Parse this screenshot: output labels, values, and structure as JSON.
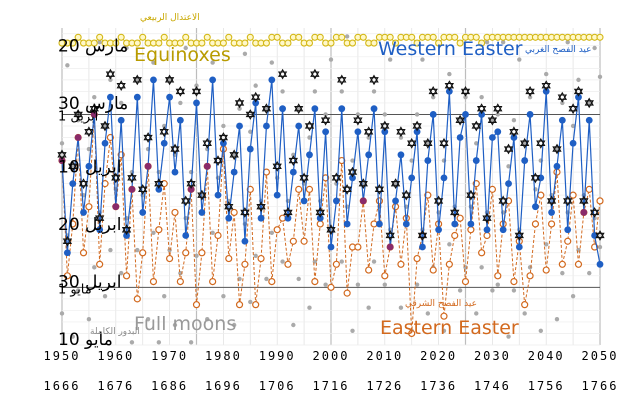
{
  "chart_data": {
    "type": "scatter",
    "title": "",
    "x_range": [
      1950,
      2050
    ],
    "x_ticks_gregorian": [
      "1950",
      "1960",
      "1970",
      "1980",
      "1990",
      "2000",
      "2010",
      "2020",
      "2030",
      "2040",
      "2050"
    ],
    "x_ticks_hijri": [
      "1666",
      "1676",
      "1686",
      "1696",
      "1706",
      "1716",
      "1726",
      "1736",
      "1746",
      "1756",
      "1766"
    ],
    "y_axis_note": "day number counted from March 1",
    "y_range": [
      17,
      72
    ],
    "y_ticks": [
      {
        "day": 20,
        "label": "مارس 20"
      },
      {
        "day": 30,
        "label": "مارس 30"
      },
      {
        "day": 32,
        "label": "ابريل 1"
      },
      {
        "day": 41,
        "label": "ابريل 10"
      },
      {
        "day": 51,
        "label": "ابريل 20"
      },
      {
        "day": 61,
        "label": "ابريل 30"
      },
      {
        "day": 62,
        "label": "مايو 1"
      },
      {
        "day": 71,
        "label": "مايو 10"
      }
    ],
    "grid": true,
    "series": [
      {
        "name": "Equinoxes",
        "name_ar": "الاعتدال الربيعي",
        "color": "#d4b817",
        "marker": "open-circle",
        "values": [
          21,
          21,
          21,
          20,
          21,
          21,
          21,
          20,
          21,
          21,
          21,
          20,
          21,
          21,
          21,
          20,
          21,
          21,
          21,
          20,
          21,
          21,
          21,
          20,
          21,
          21,
          21,
          20,
          21,
          21,
          21,
          20,
          21,
          21,
          21,
          20,
          21,
          21,
          21,
          20,
          20,
          21,
          21,
          20,
          20,
          21,
          21,
          20,
          20,
          21,
          21,
          20,
          20,
          21,
          21,
          20,
          20,
          21,
          21,
          20,
          20,
          20,
          21,
          20,
          20,
          20,
          21,
          20,
          20,
          20,
          21,
          20,
          20,
          20,
          21,
          20,
          20,
          20,
          21,
          20,
          20,
          20,
          20,
          20,
          20,
          20,
          20,
          20,
          20,
          20,
          20,
          20,
          20,
          20,
          20,
          20,
          20,
          20,
          20,
          20,
          20
        ]
      },
      {
        "name": "Full moons",
        "name_ar": "البدور الكاملة",
        "color": "#aaaaaa",
        "marker": "dot",
        "values": []
      },
      {
        "name": "Western Easter",
        "name_ar": "عيد الفصح الغربي",
        "color": "#1f5fc4",
        "marker": "filled-circle",
        "values": [
          40,
          56,
          44,
          36,
          49,
          41,
          32,
          52,
          37,
          29,
          48,
          33,
          53,
          45,
          29,
          49,
          41,
          26,
          45,
          37,
          29,
          42,
          33,
          53,
          45,
          30,
          49,
          41,
          26,
          46,
          37,
          50,
          42,
          34,
          54,
          38,
          30,
          50,
          34,
          26,
          46,
          31,
          50,
          42,
          34,
          47,
          39,
          31,
          50,
          35,
          55,
          47,
          31,
          51,
          43,
          35,
          47,
          39,
          31,
          51,
          35,
          55,
          47,
          39,
          51,
          43,
          35,
          55,
          40,
          32,
          52,
          43,
          28,
          51,
          36,
          32,
          51,
          40,
          32,
          52,
          36,
          35,
          52,
          44,
          36,
          55,
          40,
          32,
          48,
          43,
          28,
          49,
          41,
          33,
          52,
          37,
          29,
          49,
          33,
          53,
          58
        ]
      },
      {
        "name": "Eastern Easter",
        "name_ar": "عيد الفصح الشرقي",
        "color": "#d2691e",
        "marker": "open-circle",
        "values": [
          40,
          60,
          51,
          36,
          56,
          48,
          32,
          58,
          44,
          36,
          48,
          39,
          60,
          45,
          64,
          56,
          41,
          61,
          52,
          44,
          57,
          49,
          61,
          56,
          45,
          65,
          56,
          41,
          61,
          53,
          38,
          57,
          49,
          65,
          58,
          45,
          65,
          57,
          42,
          61,
          52,
          50,
          58,
          54,
          45,
          54,
          45,
          61,
          51,
          43,
          62,
          58,
          40,
          63,
          55,
          55,
          47,
          59,
          51,
          47,
          60,
          55,
          48,
          58,
          50,
          70,
          57,
          53,
          46,
          59,
          51,
          67,
          58,
          53,
          50,
          61,
          52,
          44,
          56,
          53,
          45,
          60,
          51,
          47,
          61,
          54,
          65,
          60,
          51,
          46,
          59,
          51,
          42,
          58,
          54,
          46,
          58,
          49,
          45,
          55,
          47
        ]
      },
      {
        "name": "",
        "color": "#111111",
        "marker": "star-of-david",
        "values": []
      }
    ],
    "annotations": [
      {
        "text": "Equinoxes",
        "color": "#b89b00",
        "ar": "الاعتدال الربيعي"
      },
      {
        "text": "Western Easter",
        "color": "#1f5fc4",
        "ar": "عيد الفصح الغربي"
      },
      {
        "text": "Full moons",
        "color": "#999999",
        "ar": "البدور الكاملة"
      },
      {
        "text": "Eastern Easter",
        "color": "#d2691e",
        "ar": "عيد الفصح الشرقي"
      }
    ]
  }
}
